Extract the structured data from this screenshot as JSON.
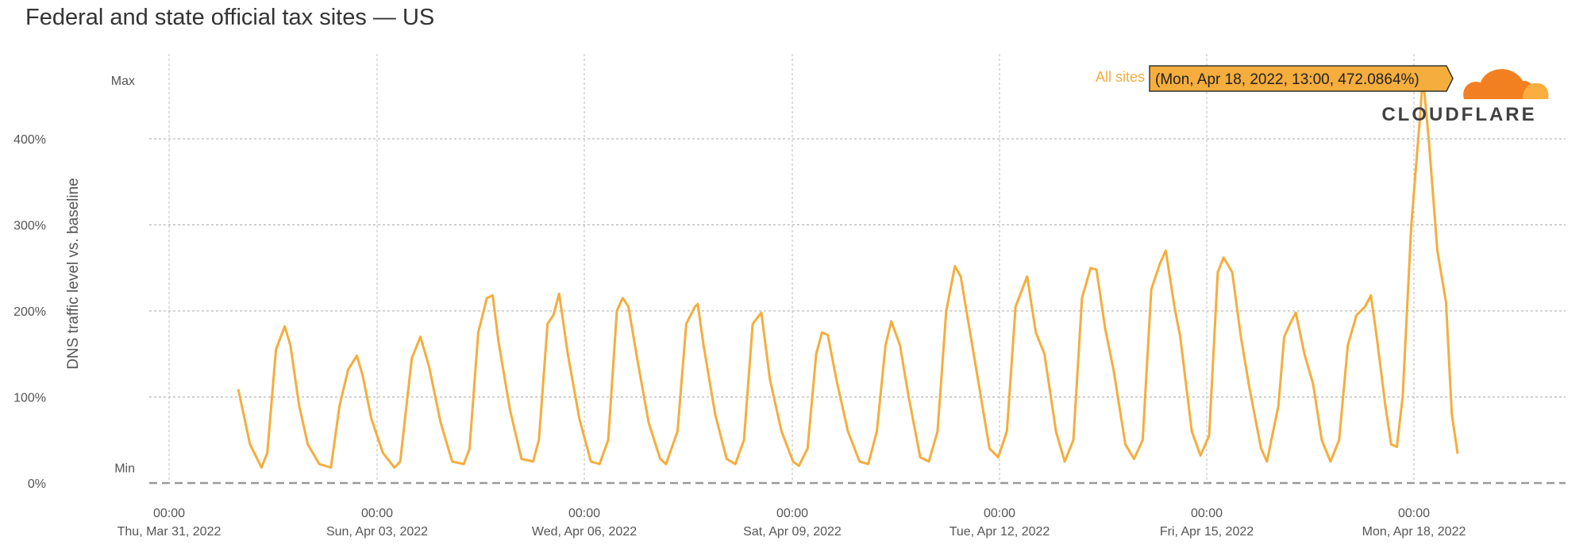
{
  "title": "Federal and state official tax sites — US",
  "brand": {
    "name": "CLOUDFLARE",
    "icon": "cloud-icon",
    "colors": [
      "#f38020",
      "#faae40"
    ]
  },
  "chart_data": {
    "type": "line",
    "ylabel": "DNS traffic level vs. baseline",
    "y_ticks": [
      {
        "value": 0,
        "label": "0%"
      },
      {
        "value": 100,
        "label": "100%"
      },
      {
        "value": 200,
        "label": "200%"
      },
      {
        "value": 300,
        "label": "300%"
      },
      {
        "value": 400,
        "label": "400%"
      }
    ],
    "y_min_label": "Min",
    "y_max_label": "Max",
    "y_min_value": 18,
    "y_max_value": 472.0864,
    "ylim": [
      0,
      500
    ],
    "x_range": [
      "2022-03-31T00:00",
      "2022-04-20T00:00"
    ],
    "x_ticks": [
      {
        "time": "00:00",
        "date": "Thu, Mar 31, 2022"
      },
      {
        "time": "00:00",
        "date": "Sun, Apr 03, 2022"
      },
      {
        "time": "00:00",
        "date": "Wed, Apr 06, 2022"
      },
      {
        "time": "00:00",
        "date": "Sat, Apr 09, 2022"
      },
      {
        "time": "00:00",
        "date": "Tue, Apr 12, 2022"
      },
      {
        "time": "00:00",
        "date": "Fri, Apr 15, 2022"
      },
      {
        "time": "00:00",
        "date": "Mon, Apr 18, 2022"
      }
    ],
    "grid": true,
    "legend_position": "top-right",
    "series": [
      {
        "name": "All sites",
        "color": "#f5ad3d",
        "points": [
          [
            "2022-04-01T00:00",
            108
          ],
          [
            "2022-04-01T04:00",
            45
          ],
          [
            "2022-04-01T08:00",
            18
          ],
          [
            "2022-04-01T10:00",
            35
          ],
          [
            "2022-04-01T13:00",
            155
          ],
          [
            "2022-04-01T16:00",
            182
          ],
          [
            "2022-04-01T18:00",
            160
          ],
          [
            "2022-04-01T21:00",
            90
          ],
          [
            "2022-04-02T00:00",
            45
          ],
          [
            "2022-04-02T04:00",
            22
          ],
          [
            "2022-04-02T08:00",
            18
          ],
          [
            "2022-04-02T11:00",
            90
          ],
          [
            "2022-04-02T14:00",
            132
          ],
          [
            "2022-04-02T17:00",
            148
          ],
          [
            "2022-04-02T19:00",
            125
          ],
          [
            "2022-04-02T22:00",
            75
          ],
          [
            "2022-04-03T02:00",
            35
          ],
          [
            "2022-04-03T06:00",
            18
          ],
          [
            "2022-04-03T08:00",
            25
          ],
          [
            "2022-04-03T12:00",
            145
          ],
          [
            "2022-04-03T15:00",
            170
          ],
          [
            "2022-04-03T18:00",
            135
          ],
          [
            "2022-04-03T22:00",
            70
          ],
          [
            "2022-04-04T02:00",
            25
          ],
          [
            "2022-04-04T06:00",
            22
          ],
          [
            "2022-04-04T08:00",
            40
          ],
          [
            "2022-04-04T11:00",
            175
          ],
          [
            "2022-04-04T14:00",
            215
          ],
          [
            "2022-04-04T16:00",
            218
          ],
          [
            "2022-04-04T18:00",
            165
          ],
          [
            "2022-04-04T22:00",
            85
          ],
          [
            "2022-04-05T02:00",
            28
          ],
          [
            "2022-04-05T06:00",
            25
          ],
          [
            "2022-04-05T08:00",
            50
          ],
          [
            "2022-04-05T11:00",
            185
          ],
          [
            "2022-04-05T13:00",
            195
          ],
          [
            "2022-04-05T15:00",
            220
          ],
          [
            "2022-04-05T18:00",
            150
          ],
          [
            "2022-04-05T22:00",
            75
          ],
          [
            "2022-04-06T02:00",
            25
          ],
          [
            "2022-04-06T05:00",
            22
          ],
          [
            "2022-04-06T08:00",
            50
          ],
          [
            "2022-04-06T11:00",
            200
          ],
          [
            "2022-04-06T13:00",
            215
          ],
          [
            "2022-04-06T15:00",
            205
          ],
          [
            "2022-04-06T18:00",
            145
          ],
          [
            "2022-04-06T22:00",
            70
          ],
          [
            "2022-04-07T02:00",
            28
          ],
          [
            "2022-04-07T04:00",
            22
          ],
          [
            "2022-04-07T08:00",
            60
          ],
          [
            "2022-04-07T11:00",
            185
          ],
          [
            "2022-04-07T14:00",
            205
          ],
          [
            "2022-04-07T15:00",
            208
          ],
          [
            "2022-04-07T17:00",
            160
          ],
          [
            "2022-04-07T21:00",
            80
          ],
          [
            "2022-04-08T01:00",
            28
          ],
          [
            "2022-04-08T04:00",
            22
          ],
          [
            "2022-04-08T07:00",
            50
          ],
          [
            "2022-04-08T10:00",
            185
          ],
          [
            "2022-04-08T13:00",
            198
          ],
          [
            "2022-04-08T16:00",
            120
          ],
          [
            "2022-04-08T20:00",
            60
          ],
          [
            "2022-04-09T00:00",
            25
          ],
          [
            "2022-04-09T02:00",
            20
          ],
          [
            "2022-04-09T05:00",
            40
          ],
          [
            "2022-04-09T08:00",
            150
          ],
          [
            "2022-04-09T10:00",
            175
          ],
          [
            "2022-04-09T12:00",
            172
          ],
          [
            "2022-04-09T15:00",
            120
          ],
          [
            "2022-04-09T19:00",
            60
          ],
          [
            "2022-04-09T23:00",
            25
          ],
          [
            "2022-04-10T02:00",
            22
          ],
          [
            "2022-04-10T05:00",
            60
          ],
          [
            "2022-04-10T08:00",
            160
          ],
          [
            "2022-04-10T10:00",
            188
          ],
          [
            "2022-04-10T13:00",
            160
          ],
          [
            "2022-04-10T16:00",
            100
          ],
          [
            "2022-04-10T20:00",
            30
          ],
          [
            "2022-04-10T23:00",
            25
          ],
          [
            "2022-04-11T02:00",
            60
          ],
          [
            "2022-04-11T05:00",
            200
          ],
          [
            "2022-04-11T08:00",
            252
          ],
          [
            "2022-04-11T10:00",
            240
          ],
          [
            "2022-04-11T13:00",
            180
          ],
          [
            "2022-04-11T16:00",
            120
          ],
          [
            "2022-04-11T20:00",
            40
          ],
          [
            "2022-04-11T23:00",
            30
          ],
          [
            "2022-04-12T02:00",
            60
          ],
          [
            "2022-04-12T05:00",
            205
          ],
          [
            "2022-04-12T09:00",
            240
          ],
          [
            "2022-04-12T12:00",
            175
          ],
          [
            "2022-04-12T15:00",
            150
          ],
          [
            "2022-04-12T19:00",
            60
          ],
          [
            "2022-04-12T22:00",
            25
          ],
          [
            "2022-04-13T01:00",
            50
          ],
          [
            "2022-04-13T04:00",
            215
          ],
          [
            "2022-04-13T07:00",
            250
          ],
          [
            "2022-04-13T09:00",
            248
          ],
          [
            "2022-04-13T12:00",
            180
          ],
          [
            "2022-04-13T15:00",
            130
          ],
          [
            "2022-04-13T19:00",
            45
          ],
          [
            "2022-04-13T22:00",
            28
          ],
          [
            "2022-04-14T01:00",
            50
          ],
          [
            "2022-04-14T04:00",
            225
          ],
          [
            "2022-04-14T07:00",
            255
          ],
          [
            "2022-04-14T09:00",
            270
          ],
          [
            "2022-04-14T12:00",
            205
          ],
          [
            "2022-04-14T14:00",
            170
          ],
          [
            "2022-04-14T18:00",
            60
          ],
          [
            "2022-04-14T21:00",
            32
          ],
          [
            "2022-04-15T00:00",
            55
          ],
          [
            "2022-04-15T03:00",
            245
          ],
          [
            "2022-04-15T05:00",
            262
          ],
          [
            "2022-04-15T08:00",
            245
          ],
          [
            "2022-04-15T11:00",
            170
          ],
          [
            "2022-04-15T14:00",
            110
          ],
          [
            "2022-04-15T18:00",
            40
          ],
          [
            "2022-04-15T20:00",
            25
          ],
          [
            "2022-04-16T00:00",
            90
          ],
          [
            "2022-04-16T02:00",
            170
          ],
          [
            "2022-04-16T04:00",
            185
          ],
          [
            "2022-04-16T06:00",
            198
          ],
          [
            "2022-04-16T09:00",
            150
          ],
          [
            "2022-04-16T12:00",
            115
          ],
          [
            "2022-04-16T15:00",
            50
          ],
          [
            "2022-04-16T18:00",
            25
          ],
          [
            "2022-04-16T21:00",
            50
          ],
          [
            "2022-04-17T00:00",
            160
          ],
          [
            "2022-04-17T03:00",
            195
          ],
          [
            "2022-04-17T06:00",
            205
          ],
          [
            "2022-04-17T08:00",
            218
          ],
          [
            "2022-04-17T10:00",
            170
          ],
          [
            "2022-04-17T13:00",
            90
          ],
          [
            "2022-04-17T15:00",
            45
          ],
          [
            "2022-04-17T17:00",
            42
          ],
          [
            "2022-04-17T19:00",
            100
          ],
          [
            "2022-04-17T22:00",
            300
          ],
          [
            "2022-04-18T01:00",
            425
          ],
          [
            "2022-04-18T02:00",
            472
          ],
          [
            "2022-04-18T04:00",
            400
          ],
          [
            "2022-04-18T07:00",
            270
          ],
          [
            "2022-04-18T10:00",
            210
          ],
          [
            "2022-04-18T12:00",
            80
          ],
          [
            "2022-04-18T14:00",
            35
          ]
        ]
      }
    ],
    "tooltip": {
      "series": "All sites",
      "text": "(Mon, Apr 18, 2022, 13:00, 472.0864%)"
    }
  }
}
